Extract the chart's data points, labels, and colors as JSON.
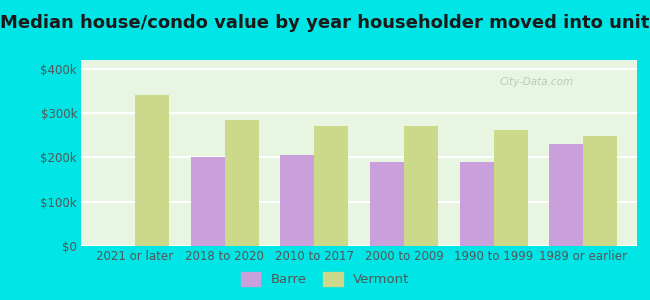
{
  "title": "Median house/condo value by year householder moved into unit",
  "categories": [
    "2021 or later",
    "2018 to 2020",
    "2010 to 2017",
    "2000 to 2009",
    "1990 to 1999",
    "1989 or earlier"
  ],
  "barre_values": [
    null,
    200000,
    205000,
    190000,
    190000,
    230000
  ],
  "vermont_values": [
    340000,
    285000,
    272000,
    270000,
    262000,
    248000
  ],
  "barre_color": "#c9a0dc",
  "vermont_color": "#ccd98a",
  "background_outer": "#00e5e5",
  "background_plot": "#e8f5e0",
  "gridline_color": "#ffffff",
  "bar_width": 0.38,
  "ylim": [
    0,
    420000
  ],
  "yticks": [
    0,
    100000,
    200000,
    300000,
    400000
  ],
  "ytick_labels": [
    "$0",
    "$100k",
    "$200k",
    "$300k",
    "$400k"
  ],
  "legend_labels": [
    "Barre",
    "Vermont"
  ],
  "title_fontsize": 13,
  "tick_fontsize": 8.5,
  "legend_fontsize": 9.5,
  "watermark_text": "City-Data.com",
  "watermark_color": "#b0c8b0",
  "title_color": "#1a1a1a",
  "tick_label_color": "#555555"
}
